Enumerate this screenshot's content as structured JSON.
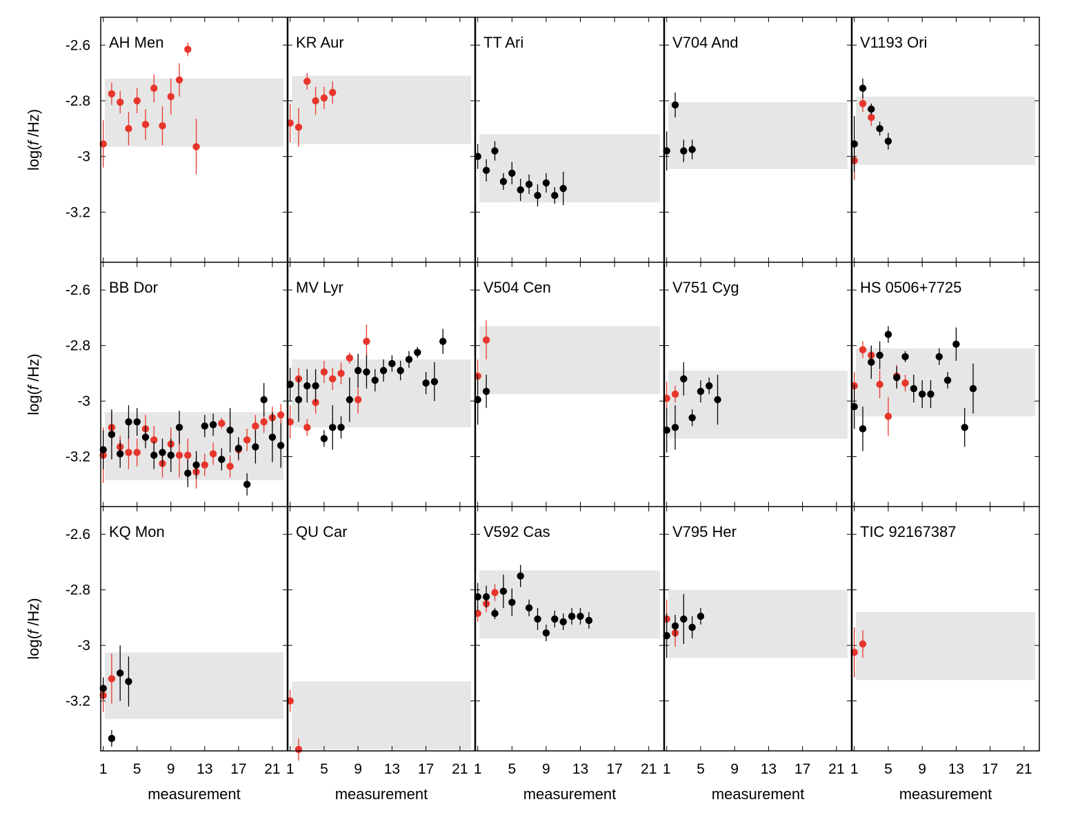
{
  "colors": {
    "red": "#e8352b",
    "black": "#000000",
    "band": "#e6e6e6"
  },
  "axes": {
    "ylabel_prefix": "log(",
    "ylabel_italic": "f",
    "ylabel_suffix": " /Hz)",
    "xlabel": "measurement",
    "ylim": [
      -3.38,
      -2.5
    ],
    "xlim": [
      0.7,
      22.8
    ],
    "yticks": [
      -2.6,
      -2.8,
      -3,
      -3.2
    ],
    "ytick_labels": [
      "-2.6",
      "-2.8",
      "-3",
      "-3.2"
    ],
    "xticks": [
      1,
      5,
      9,
      13,
      17,
      21
    ],
    "xtick_labels": [
      "1",
      "5",
      "9",
      "13",
      "17",
      "21"
    ],
    "grid": false
  },
  "chart_data": [
    {
      "type": "scatter",
      "title": "AH Men",
      "band": [
        -2.72,
        -2.965
      ],
      "red": [
        [
          1,
          -2.955,
          0.085
        ],
        [
          2,
          -2.775,
          0.04
        ],
        [
          3,
          -2.805,
          0.04
        ],
        [
          4,
          -2.9,
          0.06
        ],
        [
          5,
          -2.8,
          0.045
        ],
        [
          6,
          -2.885,
          0.055
        ],
        [
          7,
          -2.755,
          0.05
        ],
        [
          8,
          -2.89,
          0.07
        ],
        [
          9,
          -2.785,
          0.065
        ],
        [
          10,
          -2.725,
          0.06
        ],
        [
          11,
          -2.615,
          0.025
        ],
        [
          12,
          -2.965,
          0.1
        ]
      ],
      "black": []
    },
    {
      "type": "scatter",
      "title": "KR Aur",
      "band": [
        -2.71,
        -2.955
      ],
      "red": [
        [
          1,
          -2.88,
          0.07
        ],
        [
          2,
          -2.895,
          0.07
        ],
        [
          3,
          -2.73,
          0.03
        ],
        [
          4,
          -2.8,
          0.05
        ],
        [
          5,
          -2.79,
          0.04
        ],
        [
          6,
          -2.77,
          0.04
        ]
      ],
      "black": []
    },
    {
      "type": "scatter",
      "title": "TT Ari",
      "band": [
        -2.92,
        -3.165
      ],
      "red": [],
      "black": [
        [
          1,
          -3.0,
          0.045
        ],
        [
          2,
          -3.05,
          0.04
        ],
        [
          3,
          -2.98,
          0.035
        ],
        [
          4,
          -3.09,
          0.03
        ],
        [
          5,
          -3.06,
          0.04
        ],
        [
          6,
          -3.12,
          0.04
        ],
        [
          7,
          -3.1,
          0.035
        ],
        [
          8,
          -3.14,
          0.04
        ],
        [
          9,
          -3.095,
          0.035
        ],
        [
          10,
          -3.14,
          0.03
        ],
        [
          11,
          -3.115,
          0.06
        ]
      ]
    },
    {
      "type": "scatter",
      "title": "V704 And",
      "band": [
        -2.805,
        -3.045
      ],
      "red": [],
      "black": [
        [
          1,
          -2.98,
          0.07
        ],
        [
          2,
          -2.815,
          0.045
        ],
        [
          3,
          -2.98,
          0.04
        ],
        [
          4,
          -2.975,
          0.035
        ]
      ]
    },
    {
      "type": "scatter",
      "title": "V1193 Ori",
      "band": [
        -2.785,
        -3.03
      ],
      "red": [
        [
          1,
          -3.015,
          0.07
        ],
        [
          2,
          -2.81,
          0.03
        ],
        [
          3,
          -2.86,
          0.03
        ]
      ],
      "black": [
        [
          1,
          -2.955,
          0.1
        ],
        [
          2,
          -2.755,
          0.035
        ],
        [
          3,
          -2.83,
          0.02
        ],
        [
          4,
          -2.9,
          0.025
        ],
        [
          5,
          -2.945,
          0.03
        ]
      ]
    },
    {
      "type": "scatter",
      "title": "BB Dor",
      "band": [
        -3.04,
        -3.285
      ],
      "red": [
        [
          1,
          -3.195,
          0.1
        ],
        [
          2,
          -3.095,
          0.06
        ],
        [
          3,
          -3.165,
          0.04
        ],
        [
          4,
          -3.185,
          0.06
        ],
        [
          5,
          -3.185,
          0.05
        ],
        [
          6,
          -3.1,
          0.05
        ],
        [
          7,
          -3.14,
          0.05
        ],
        [
          8,
          -3.225,
          0.05
        ],
        [
          9,
          -3.155,
          0.06
        ],
        [
          10,
          -3.195,
          0.08
        ],
        [
          11,
          -3.195,
          0.06
        ],
        [
          12,
          -3.255,
          0.06
        ],
        [
          13,
          -3.23,
          0.04
        ],
        [
          14,
          -3.19,
          0.04
        ],
        [
          15,
          -3.08,
          0.02
        ],
        [
          16,
          -3.235,
          0.04
        ],
        [
          17,
          -3.175,
          0.04
        ],
        [
          18,
          -3.14,
          0.04
        ],
        [
          19,
          -3.09,
          0.04
        ],
        [
          20,
          -3.075,
          0.04
        ],
        [
          21,
          -3.06,
          0.04
        ],
        [
          22,
          -3.05,
          0.04
        ]
      ],
      "black": [
        [
          1,
          -3.175,
          0.07
        ],
        [
          2,
          -3.12,
          0.09
        ],
        [
          3,
          -3.19,
          0.05
        ],
        [
          4,
          -3.075,
          0.06
        ],
        [
          5,
          -3.075,
          0.05
        ],
        [
          6,
          -3.13,
          0.04
        ],
        [
          7,
          -3.195,
          0.05
        ],
        [
          8,
          -3.185,
          0.05
        ],
        [
          9,
          -3.195,
          0.06
        ],
        [
          10,
          -3.095,
          0.06
        ],
        [
          11,
          -3.26,
          0.05
        ],
        [
          12,
          -3.23,
          0.05
        ],
        [
          13,
          -3.09,
          0.04
        ],
        [
          14,
          -3.085,
          0.04
        ],
        [
          15,
          -3.21,
          0.04
        ],
        [
          16,
          -3.105,
          0.08
        ],
        [
          17,
          -3.17,
          0.04
        ],
        [
          18,
          -3.3,
          0.04
        ],
        [
          19,
          -3.165,
          0.06
        ],
        [
          20,
          -2.995,
          0.06
        ],
        [
          21,
          -3.13,
          0.09
        ],
        [
          22,
          -3.16,
          0.08
        ]
      ]
    },
    {
      "type": "scatter",
      "title": "MV Lyr",
      "band": [
        -2.85,
        -3.095
      ],
      "red": [
        [
          1,
          -3.075,
          0.06
        ],
        [
          2,
          -2.92,
          0.04
        ],
        [
          3,
          -3.095,
          0.03
        ],
        [
          4,
          -3.005,
          0.04
        ],
        [
          5,
          -2.895,
          0.04
        ],
        [
          6,
          -2.92,
          0.04
        ],
        [
          7,
          -2.9,
          0.04
        ],
        [
          8,
          -2.845,
          0.02
        ],
        [
          9,
          -2.995,
          0.05
        ],
        [
          10,
          -2.785,
          0.06
        ]
      ],
      "black": [
        [
          1,
          -2.94,
          0.06
        ],
        [
          2,
          -2.995,
          0.08
        ],
        [
          3,
          -2.945,
          0.06
        ],
        [
          4,
          -2.945,
          0.06
        ],
        [
          5,
          -3.135,
          0.03
        ],
        [
          6,
          -3.095,
          0.08
        ],
        [
          7,
          -3.095,
          0.04
        ],
        [
          8,
          -2.995,
          0.08
        ],
        [
          9,
          -2.89,
          0.06
        ],
        [
          10,
          -2.895,
          0.06
        ],
        [
          11,
          -2.925,
          0.04
        ],
        [
          12,
          -2.89,
          0.04
        ],
        [
          13,
          -2.865,
          0.03
        ],
        [
          14,
          -2.89,
          0.035
        ],
        [
          15,
          -2.85,
          0.03
        ],
        [
          16,
          -2.825,
          0.02
        ],
        [
          17,
          -2.935,
          0.04
        ],
        [
          18,
          -2.93,
          0.07
        ],
        [
          19,
          -2.785,
          0.045
        ]
      ]
    },
    {
      "type": "scatter",
      "title": "V504 Cen",
      "band": [
        -2.73,
        -2.975
      ],
      "red": [
        [
          1,
          -2.91,
          0.06
        ],
        [
          2,
          -2.78,
          0.07
        ]
      ],
      "black": [
        [
          1,
          -2.995,
          0.09
        ],
        [
          2,
          -2.965,
          0.06
        ]
      ]
    },
    {
      "type": "scatter",
      "title": "V751 Cyg",
      "band": [
        -2.89,
        -3.135
      ],
      "red": [
        [
          1,
          -2.99,
          0.06
        ],
        [
          2,
          -2.975,
          0.03
        ]
      ],
      "black": [
        [
          1,
          -3.105,
          0.08
        ],
        [
          2,
          -3.095,
          0.08
        ],
        [
          3,
          -2.92,
          0.06
        ],
        [
          4,
          -3.06,
          0.03
        ],
        [
          5,
          -2.965,
          0.04
        ],
        [
          6,
          -2.945,
          0.03
        ],
        [
          7,
          -2.995,
          0.09
        ]
      ]
    },
    {
      "type": "scatter",
      "title": "HS 0506+7725",
      "band": [
        -2.81,
        -3.055
      ],
      "red": [
        [
          1,
          -2.945,
          0.05
        ],
        [
          2,
          -2.815,
          0.03
        ],
        [
          3,
          -2.835,
          0.03
        ],
        [
          4,
          -2.94,
          0.05
        ],
        [
          5,
          -3.055,
          0.07
        ],
        [
          6,
          -2.91,
          0.04
        ],
        [
          7,
          -2.935,
          0.03
        ]
      ],
      "black": [
        [
          1,
          -3.02,
          0.08
        ],
        [
          2,
          -3.1,
          0.08
        ],
        [
          3,
          -2.86,
          0.06
        ],
        [
          4,
          -2.835,
          0.05
        ],
        [
          5,
          -2.76,
          0.03
        ],
        [
          6,
          -2.915,
          0.04
        ],
        [
          7,
          -2.84,
          0.02
        ],
        [
          8,
          -2.955,
          0.05
        ],
        [
          9,
          -2.975,
          0.05
        ],
        [
          10,
          -2.975,
          0.05
        ],
        [
          11,
          -2.84,
          0.03
        ],
        [
          12,
          -2.925,
          0.03
        ],
        [
          13,
          -2.795,
          0.06
        ],
        [
          14,
          -3.095,
          0.07
        ],
        [
          15,
          -2.955,
          0.09
        ]
      ]
    },
    {
      "type": "scatter",
      "title": "KQ Mon",
      "band": [
        -3.025,
        -3.265
      ],
      "red": [
        [
          1,
          -3.18,
          0.06
        ],
        [
          2,
          -3.12,
          0.09
        ]
      ],
      "black": [
        [
          1,
          -3.155,
          0.04
        ],
        [
          2,
          -3.335,
          0.03
        ],
        [
          3,
          -3.1,
          0.1
        ],
        [
          4,
          -3.13,
          0.09
        ]
      ]
    },
    {
      "type": "scatter",
      "title": "QU Car",
      "band": [
        -3.13,
        -3.375
      ],
      "red": [
        [
          1,
          -3.2,
          0.04
        ],
        [
          2,
          -3.375,
          0.04
        ]
      ],
      "black": []
    },
    {
      "type": "scatter",
      "title": "V592 Cas",
      "band": [
        -2.73,
        -2.975
      ],
      "red": [
        [
          1,
          -2.885,
          0.03
        ],
        [
          2,
          -2.85,
          0.03
        ],
        [
          3,
          -2.81,
          0.03
        ]
      ],
      "black": [
        [
          1,
          -2.825,
          0.05
        ],
        [
          2,
          -2.825,
          0.04
        ],
        [
          3,
          -2.885,
          0.02
        ],
        [
          4,
          -2.805,
          0.06
        ],
        [
          5,
          -2.845,
          0.05
        ],
        [
          6,
          -2.75,
          0.04
        ],
        [
          7,
          -2.865,
          0.03
        ],
        [
          8,
          -2.905,
          0.04
        ],
        [
          9,
          -2.955,
          0.03
        ],
        [
          10,
          -2.905,
          0.03
        ],
        [
          11,
          -2.915,
          0.03
        ],
        [
          12,
          -2.895,
          0.03
        ],
        [
          13,
          -2.895,
          0.03
        ],
        [
          14,
          -2.91,
          0.03
        ]
      ]
    },
    {
      "type": "scatter",
      "title": "V795 Her",
      "band": [
        -2.8,
        -3.045
      ],
      "red": [
        [
          1,
          -2.905,
          0.07
        ],
        [
          2,
          -2.955,
          0.05
        ]
      ],
      "black": [
        [
          1,
          -2.965,
          0.08
        ],
        [
          2,
          -2.93,
          0.04
        ],
        [
          3,
          -2.905,
          0.09
        ],
        [
          4,
          -2.935,
          0.04
        ],
        [
          5,
          -2.895,
          0.03
        ]
      ]
    },
    {
      "type": "scatter",
      "title": "TIC 92167387",
      "band": [
        -2.88,
        -3.125
      ],
      "red": [
        [
          1,
          -3.025,
          0.09
        ],
        [
          2,
          -2.995,
          0.05
        ]
      ],
      "black": []
    }
  ]
}
